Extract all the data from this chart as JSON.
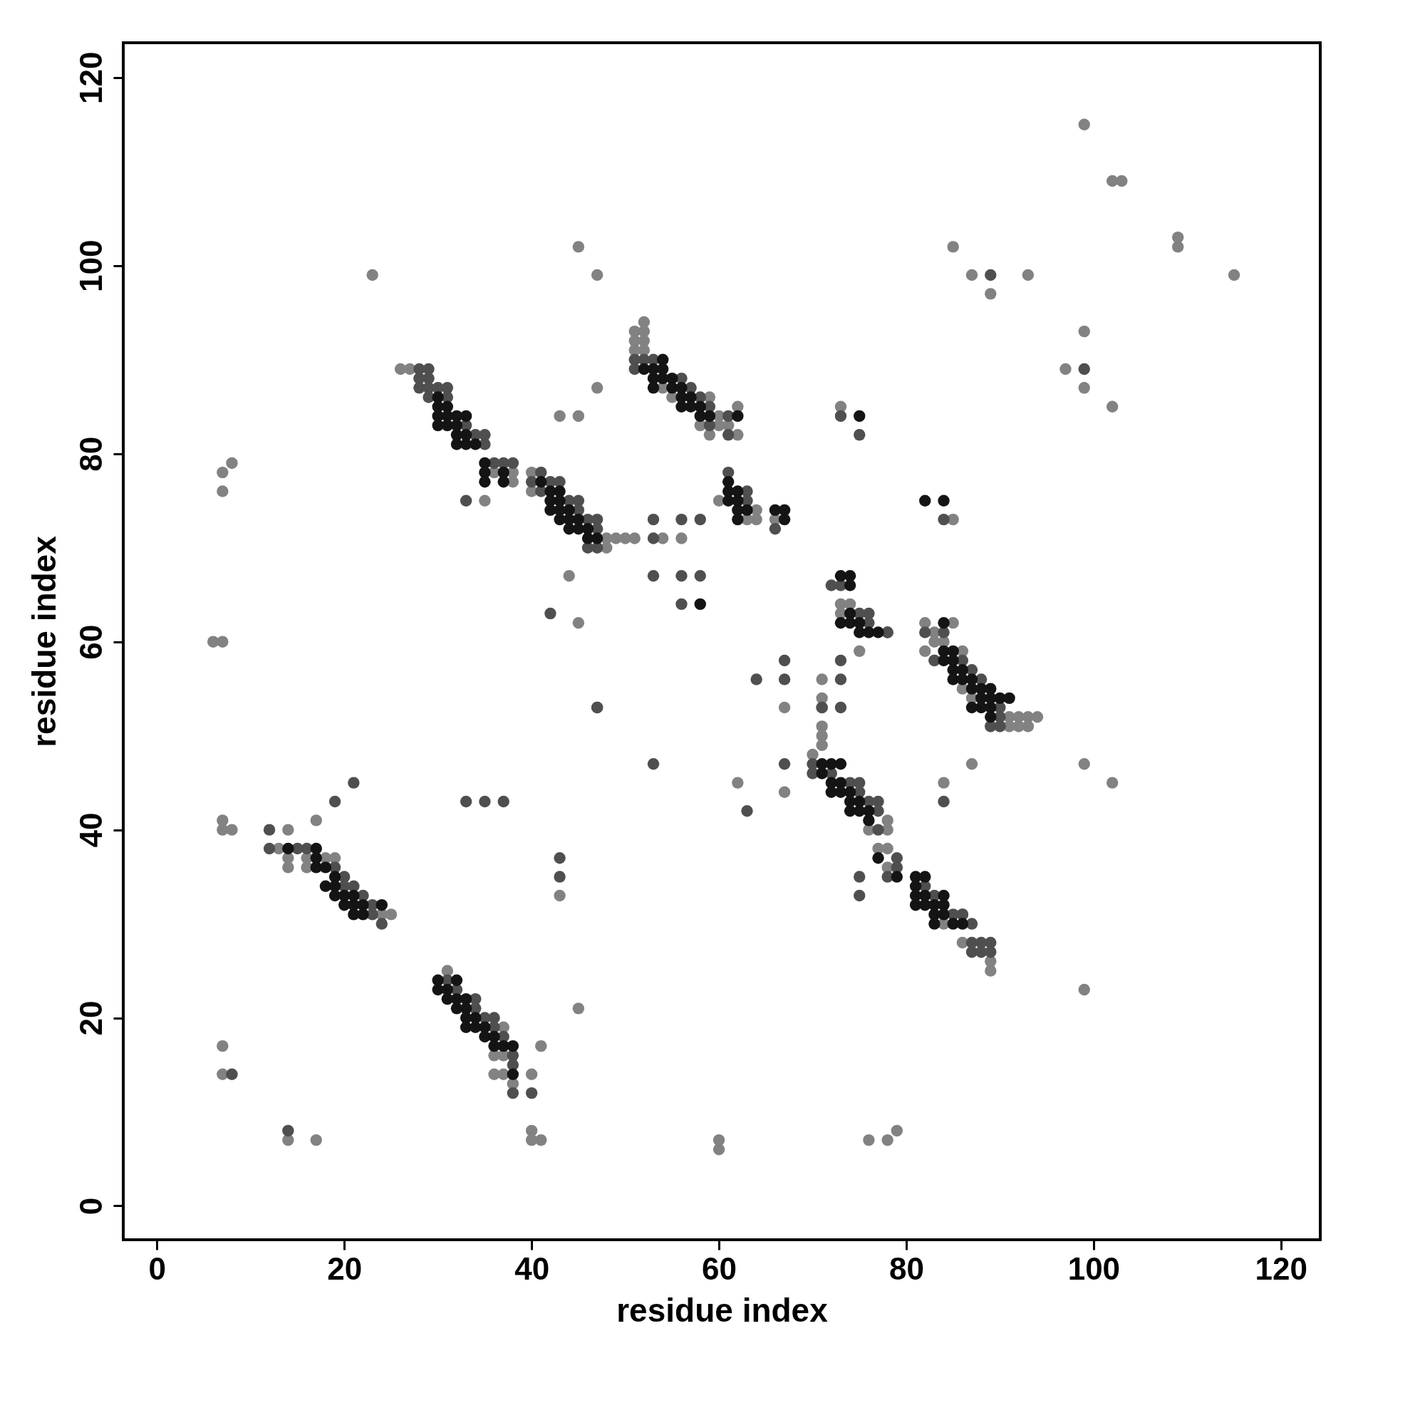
{
  "chart_data": {
    "type": "scatter",
    "xlabel": "residue index",
    "ylabel": "residue index",
    "xlim": [
      -3.6,
      124.2
    ],
    "ylim": [
      -3.6,
      123.7
    ],
    "xticks": [
      0,
      20,
      40,
      60,
      80,
      100,
      120
    ],
    "yticks": [
      0,
      20,
      40,
      60,
      80,
      100,
      120
    ],
    "marker": "circle",
    "series": [
      {
        "color": "#828282",
        "x": [
          99,
          102,
          103,
          109,
          109,
          115,
          45,
          23,
          47,
          85,
          87,
          93,
          89,
          99,
          97,
          99,
          102,
          47,
          43,
          45,
          73,
          7,
          8,
          7,
          35,
          54,
          56,
          44,
          45,
          60,
          6,
          7,
          85,
          71,
          71,
          67,
          62,
          67,
          87,
          99,
          102,
          84,
          17,
          7,
          7,
          8,
          14,
          43,
          45,
          41,
          7,
          7,
          40,
          40,
          40,
          41,
          14,
          17,
          60,
          60,
          76,
          78,
          79,
          99,
          75,
          26,
          27,
          36,
          38,
          38,
          40,
          40,
          48,
          49,
          50,
          51,
          48,
          52,
          51,
          52,
          51,
          52,
          51,
          52,
          54,
          55,
          59,
          60,
          58,
          60,
          61,
          59,
          62,
          62,
          64,
          63,
          64,
          66,
          73,
          74,
          73,
          78,
          76,
          78,
          71,
          71,
          71,
          70,
          77,
          78,
          78,
          82,
          85,
          83,
          83,
          84,
          82,
          86,
          83,
          86,
          87,
          91,
          92,
          93,
          94,
          91,
          92,
          93,
          84,
          86,
          89,
          89,
          13,
          14,
          16,
          18,
          19,
          14,
          16,
          24,
          25,
          31,
          37,
          36,
          37,
          36,
          37,
          38
        ],
        "values": [
          115,
          109,
          109,
          103,
          102,
          99,
          102,
          99,
          99,
          102,
          99,
          99,
          97,
          93,
          89,
          87,
          85,
          87,
          84,
          84,
          85,
          78,
          79,
          76,
          75,
          71,
          71,
          67,
          62,
          75,
          60,
          60,
          73,
          56,
          54,
          53,
          45,
          44,
          47,
          47,
          45,
          45,
          41,
          41,
          40,
          40,
          40,
          33,
          21,
          17,
          17,
          14,
          14,
          8,
          7,
          7,
          7,
          7,
          7,
          6,
          7,
          7,
          8,
          23,
          59,
          89,
          89,
          78,
          78,
          77,
          78,
          76,
          71,
          71,
          71,
          71,
          70,
          94,
          93,
          93,
          92,
          92,
          91,
          91,
          87,
          86,
          86,
          84,
          83,
          83,
          83,
          82,
          82,
          85,
          74,
          73,
          73,
          73,
          64,
          64,
          63,
          41,
          40,
          40,
          51,
          50,
          49,
          48,
          38,
          38,
          36,
          62,
          62,
          61,
          60,
          60,
          59,
          59,
          58,
          55,
          54,
          52,
          52,
          52,
          52,
          51,
          51,
          51,
          30,
          28,
          26,
          25,
          38,
          37,
          37,
          37,
          37,
          36,
          36,
          31,
          31,
          25,
          19,
          16,
          16,
          14,
          14,
          13
        ]
      },
      {
        "color": "#4f4f4f",
        "x": [
          89,
          99,
          73,
          75,
          33,
          53,
          56,
          58,
          53,
          53,
          56,
          58,
          56,
          47,
          42,
          84,
          67,
          64,
          67,
          73,
          73,
          73,
          71,
          47,
          53,
          63,
          67,
          84,
          21,
          19,
          12,
          33,
          35,
          37,
          43,
          43,
          8,
          40,
          14,
          75,
          75,
          28,
          29,
          28,
          29,
          28,
          29,
          29,
          30,
          31,
          31,
          33,
          34,
          35,
          35,
          36,
          37,
          38,
          41,
          42,
          43,
          40,
          41,
          44,
          45,
          45,
          46,
          47,
          47,
          46,
          47,
          51,
          52,
          53,
          51,
          56,
          57,
          58,
          59,
          61,
          59,
          61,
          61,
          63,
          63,
          66,
          72,
          73,
          75,
          76,
          76,
          78,
          82,
          84,
          83,
          86,
          87,
          88,
          90,
          90,
          89,
          90,
          71,
          70,
          70,
          72,
          74,
          75,
          75,
          76,
          77,
          77,
          77,
          78,
          79,
          79,
          78,
          82,
          83,
          85,
          86,
          87,
          86,
          87,
          88,
          89,
          87,
          88,
          89,
          12,
          15,
          16,
          19,
          20,
          20,
          21,
          22,
          23,
          23,
          24,
          31,
          32,
          34,
          34,
          35,
          36,
          36,
          37,
          38,
          38,
          38
        ],
        "values": [
          99,
          89,
          84,
          82,
          75,
          73,
          73,
          73,
          71,
          67,
          67,
          67,
          64,
          53,
          63,
          73,
          58,
          56,
          56,
          58,
          56,
          53,
          53,
          53,
          47,
          42,
          47,
          43,
          45,
          43,
          40,
          43,
          43,
          43,
          37,
          35,
          14,
          12,
          8,
          35,
          33,
          89,
          89,
          88,
          88,
          87,
          87,
          86,
          87,
          87,
          86,
          83,
          82,
          82,
          81,
          79,
          79,
          79,
          78,
          77,
          77,
          77,
          76,
          75,
          75,
          74,
          73,
          73,
          72,
          70,
          70,
          90,
          90,
          90,
          89,
          88,
          87,
          86,
          85,
          84,
          83,
          82,
          78,
          76,
          75,
          72,
          66,
          66,
          63,
          63,
          62,
          61,
          61,
          61,
          58,
          58,
          57,
          56,
          53,
          52,
          51,
          51,
          53,
          47,
          46,
          46,
          45,
          45,
          44,
          43,
          43,
          42,
          40,
          61,
          37,
          36,
          35,
          34,
          33,
          31,
          31,
          30,
          31,
          28,
          28,
          28,
          27,
          27,
          27,
          38,
          38,
          38,
          36,
          35,
          34,
          34,
          33,
          32,
          31,
          30,
          24,
          23,
          22,
          21,
          20,
          20,
          19,
          18,
          16,
          15,
          12
        ]
      },
      {
        "color": "#141414",
        "x": [
          58,
          75,
          82,
          84,
          30,
          30,
          31,
          30,
          31,
          32,
          33,
          30,
          31,
          32,
          32,
          33,
          32,
          33,
          34,
          35,
          35,
          37,
          35,
          37,
          41,
          42,
          43,
          42,
          43,
          42,
          43,
          44,
          43,
          44,
          45,
          44,
          45,
          46,
          46,
          47,
          54,
          52,
          53,
          54,
          53,
          54,
          55,
          53,
          55,
          56,
          56,
          57,
          56,
          57,
          58,
          58,
          59,
          62,
          61,
          61,
          62,
          61,
          62,
          62,
          63,
          62,
          66,
          67,
          67,
          73,
          74,
          74,
          74,
          73,
          74,
          75,
          75,
          76,
          77,
          84,
          84,
          85,
          84,
          85,
          85,
          86,
          85,
          86,
          87,
          87,
          88,
          89,
          88,
          89,
          90,
          91,
          87,
          88,
          89,
          89,
          71,
          72,
          73,
          71,
          72,
          73,
          72,
          73,
          74,
          74,
          75,
          74,
          75,
          76,
          76,
          77,
          79,
          81,
          82,
          81,
          81,
          82,
          84,
          81,
          82,
          83,
          84,
          83,
          84,
          83,
          85,
          86,
          14,
          17,
          17,
          17,
          18,
          19,
          18,
          19,
          19,
          20,
          21,
          20,
          21,
          22,
          21,
          22,
          24,
          30,
          32,
          30,
          31,
          31,
          32,
          33,
          32,
          33,
          33,
          34,
          33,
          34,
          35,
          35,
          36,
          36,
          37,
          38,
          38
        ],
        "values": [
          64,
          84,
          75,
          75,
          86,
          85,
          85,
          84,
          84,
          84,
          84,
          83,
          83,
          83,
          82,
          82,
          81,
          81,
          81,
          79,
          78,
          78,
          77,
          77,
          77,
          76,
          76,
          75,
          75,
          74,
          74,
          74,
          73,
          73,
          73,
          72,
          72,
          72,
          71,
          71,
          90,
          89,
          89,
          89,
          88,
          88,
          88,
          87,
          87,
          87,
          86,
          86,
          85,
          85,
          85,
          84,
          84,
          84,
          77,
          76,
          76,
          75,
          75,
          74,
          74,
          73,
          74,
          74,
          73,
          67,
          67,
          66,
          63,
          62,
          62,
          62,
          61,
          61,
          61,
          62,
          59,
          59,
          58,
          58,
          57,
          57,
          56,
          56,
          56,
          55,
          55,
          55,
          54,
          54,
          54,
          54,
          53,
          53,
          53,
          52,
          47,
          47,
          47,
          46,
          45,
          45,
          44,
          44,
          44,
          43,
          43,
          42,
          42,
          42,
          41,
          37,
          35,
          35,
          35,
          34,
          33,
          33,
          33,
          32,
          32,
          32,
          32,
          31,
          31,
          30,
          30,
          30,
          38,
          38,
          37,
          36,
          36,
          35,
          34,
          34,
          33,
          33,
          33,
          32,
          32,
          32,
          31,
          31,
          32,
          24,
          24,
          23,
          23,
          22,
          22,
          22,
          21,
          21,
          20,
          20,
          19,
          19,
          19,
          18,
          18,
          17,
          17,
          17,
          14
        ]
      }
    ]
  }
}
